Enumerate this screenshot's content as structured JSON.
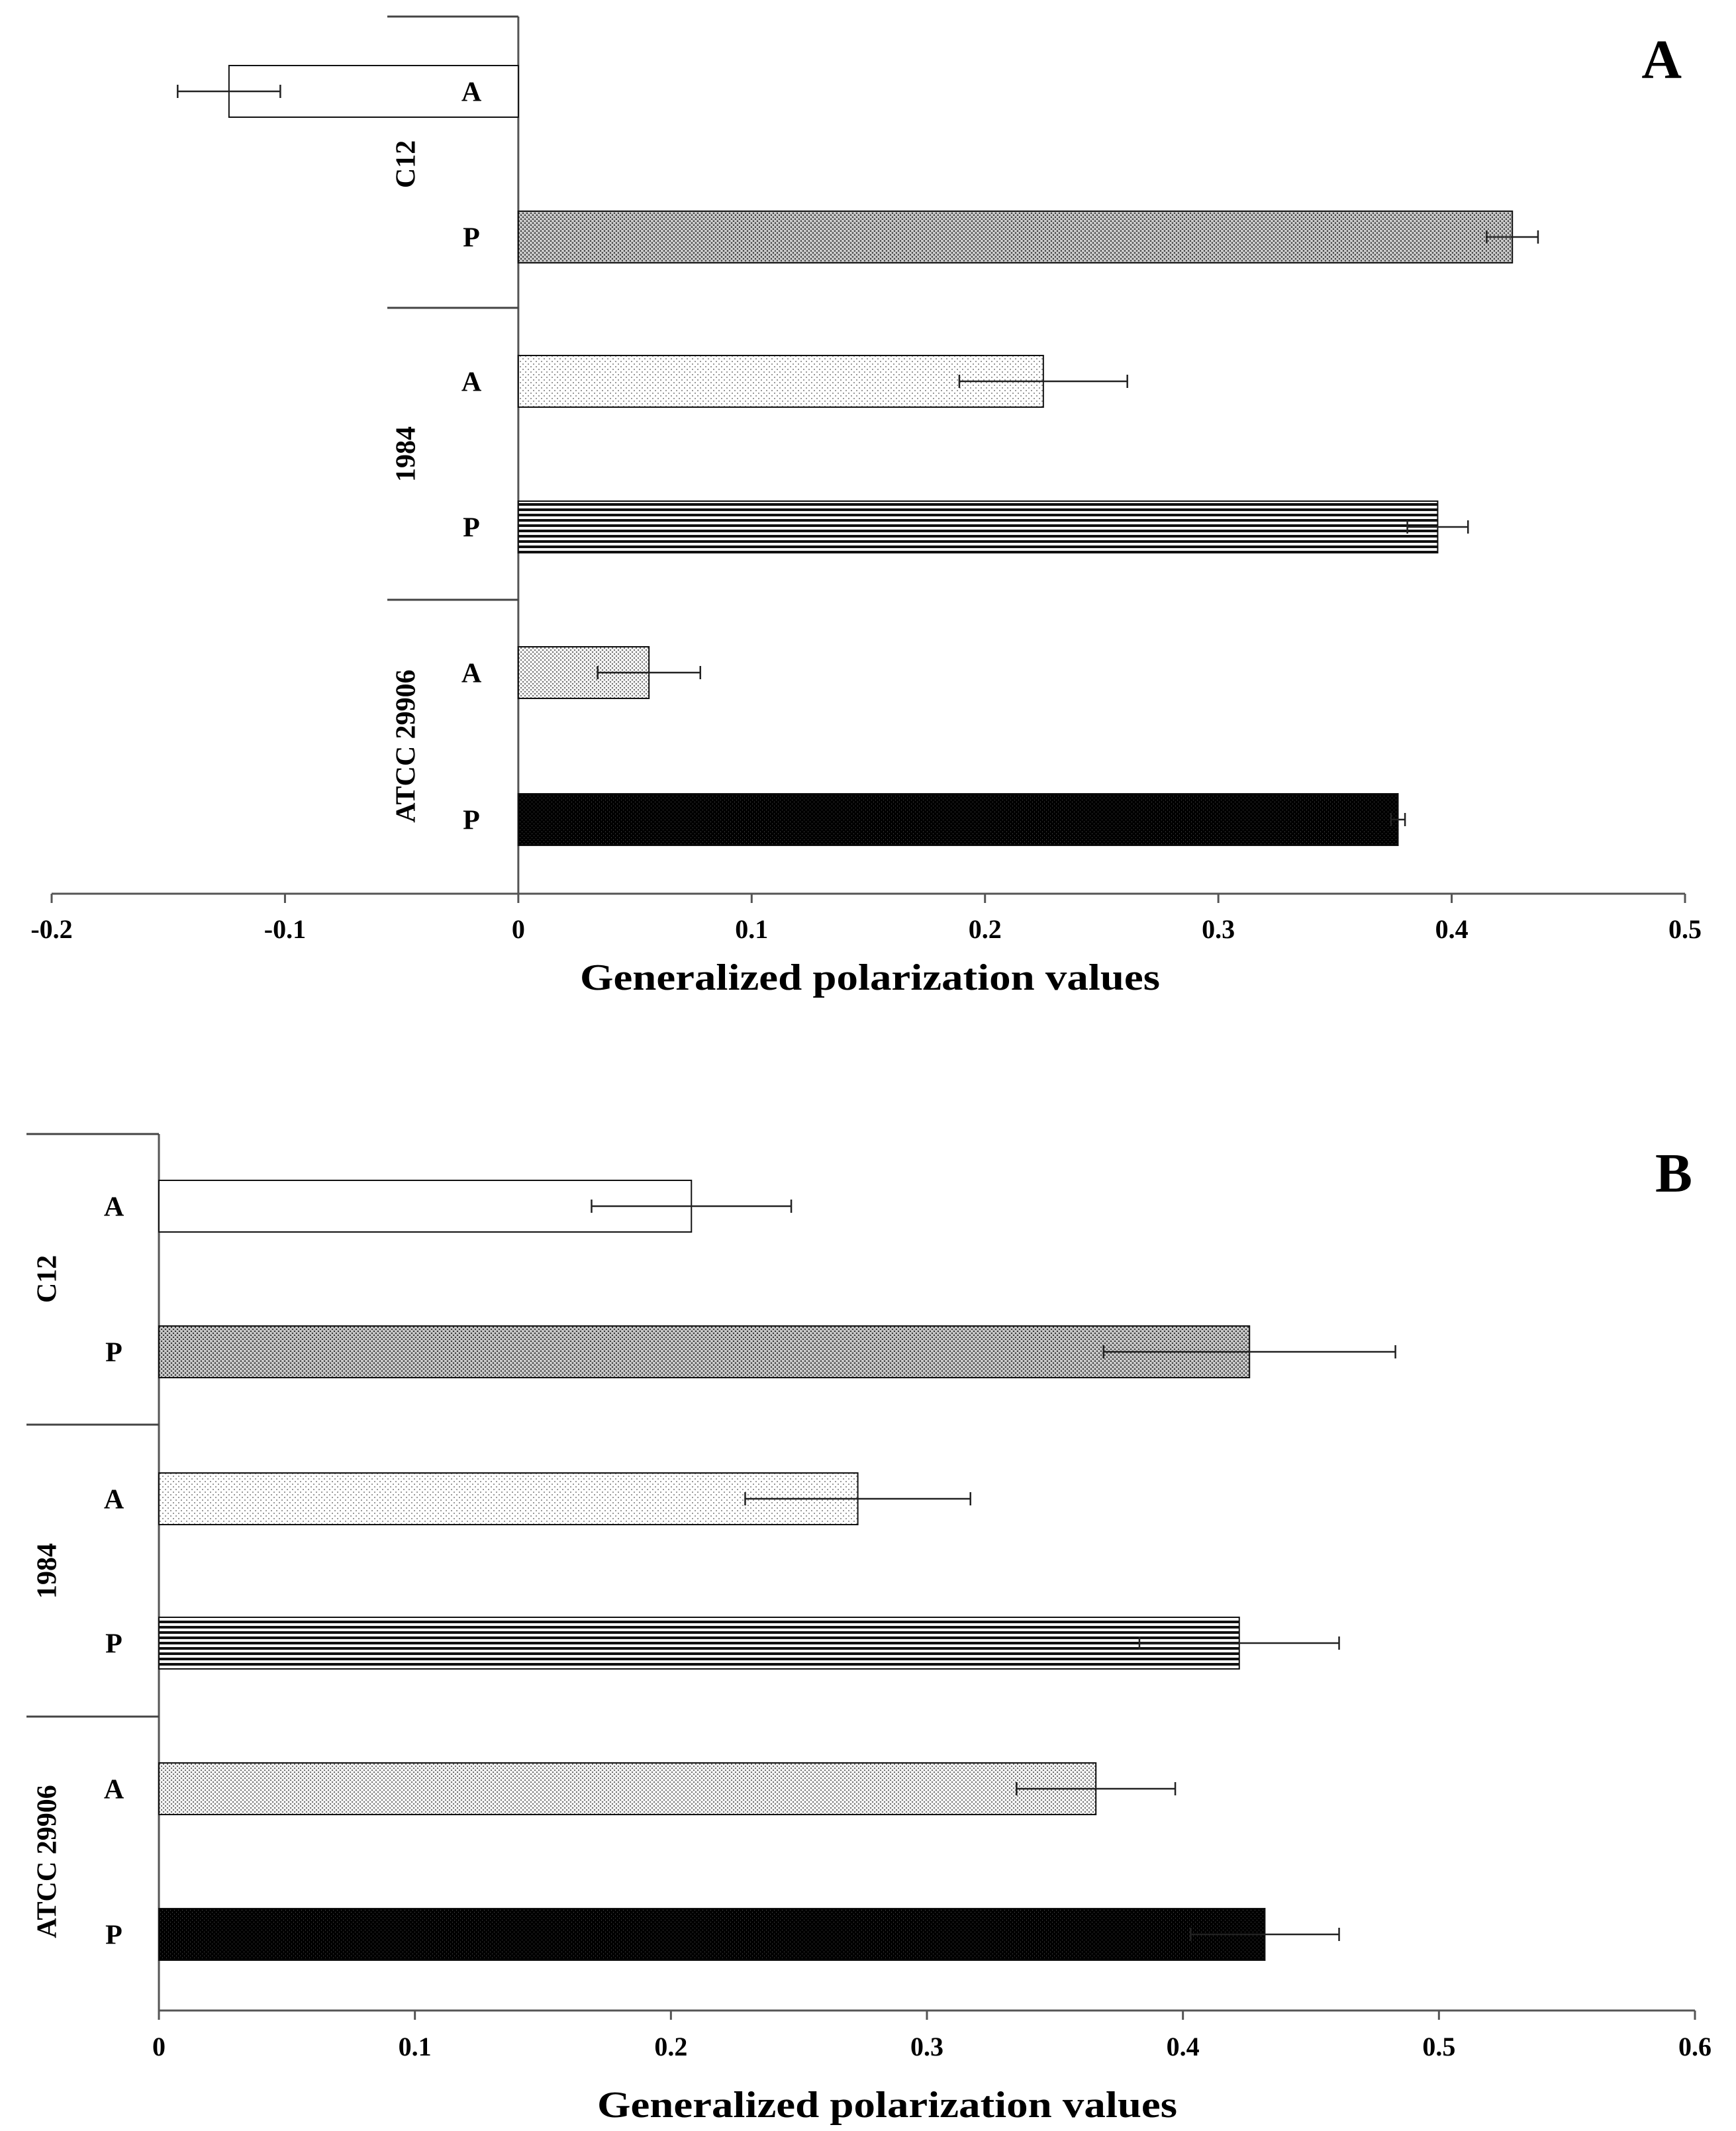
{
  "chart_data": [
    {
      "type": "bar",
      "orientation": "horizontal",
      "panel": "A",
      "xlabel": "Generalized polarization values",
      "xlim": [
        -0.2,
        0.5
      ],
      "xticks": [
        -0.2,
        -0.1,
        0,
        0.1,
        0.2,
        0.3,
        0.4,
        0.5
      ],
      "xtick_labels": [
        "-0.2",
        "-0.1",
        "0",
        "0.1",
        "0.2",
        "0.3",
        "0.4",
        "0.5"
      ],
      "groups": [
        {
          "name": "C12",
          "bars": [
            {
              "label": "A",
              "value": -0.124,
              "error": 0.022,
              "pattern": "white"
            },
            {
              "label": "P",
              "value": 0.426,
              "error": 0.011,
              "pattern": "dense"
            }
          ]
        },
        {
          "name": "1984",
          "bars": [
            {
              "label": "A",
              "value": 0.225,
              "error": 0.036,
              "pattern": "light"
            },
            {
              "label": "P",
              "value": 0.394,
              "error": 0.013,
              "pattern": "stripes"
            }
          ]
        },
        {
          "name": "ATCC 29906",
          "bars": [
            {
              "label": "A",
              "value": 0.056,
              "error": 0.022,
              "pattern": "medium"
            },
            {
              "label": "P",
              "value": 0.377,
              "error": 0.003,
              "pattern": "black"
            }
          ]
        }
      ]
    },
    {
      "type": "bar",
      "orientation": "horizontal",
      "panel": "B",
      "xlabel": "Generalized polarization values",
      "xlim": [
        0,
        0.6
      ],
      "xticks": [
        0,
        0.1,
        0.2,
        0.3,
        0.4,
        0.5,
        0.6
      ],
      "xtick_labels": [
        "0",
        "0.1",
        "0.2",
        "0.3",
        "0.4",
        "0.5",
        "0.6"
      ],
      "groups": [
        {
          "name": "C12",
          "bars": [
            {
              "label": "A",
              "value": 0.208,
              "error": 0.039,
              "pattern": "white"
            },
            {
              "label": "P",
              "value": 0.426,
              "error": 0.057,
              "pattern": "dense"
            }
          ]
        },
        {
          "name": "1984",
          "bars": [
            {
              "label": "A",
              "value": 0.273,
              "error": 0.044,
              "pattern": "light"
            },
            {
              "label": "P",
              "value": 0.422,
              "error": 0.039,
              "pattern": "stripes"
            }
          ]
        },
        {
          "name": "ATCC 29906",
          "bars": [
            {
              "label": "A",
              "value": 0.366,
              "error": 0.031,
              "pattern": "medium"
            },
            {
              "label": "P",
              "value": 0.432,
              "error": 0.029,
              "pattern": "black"
            }
          ]
        }
      ]
    }
  ]
}
